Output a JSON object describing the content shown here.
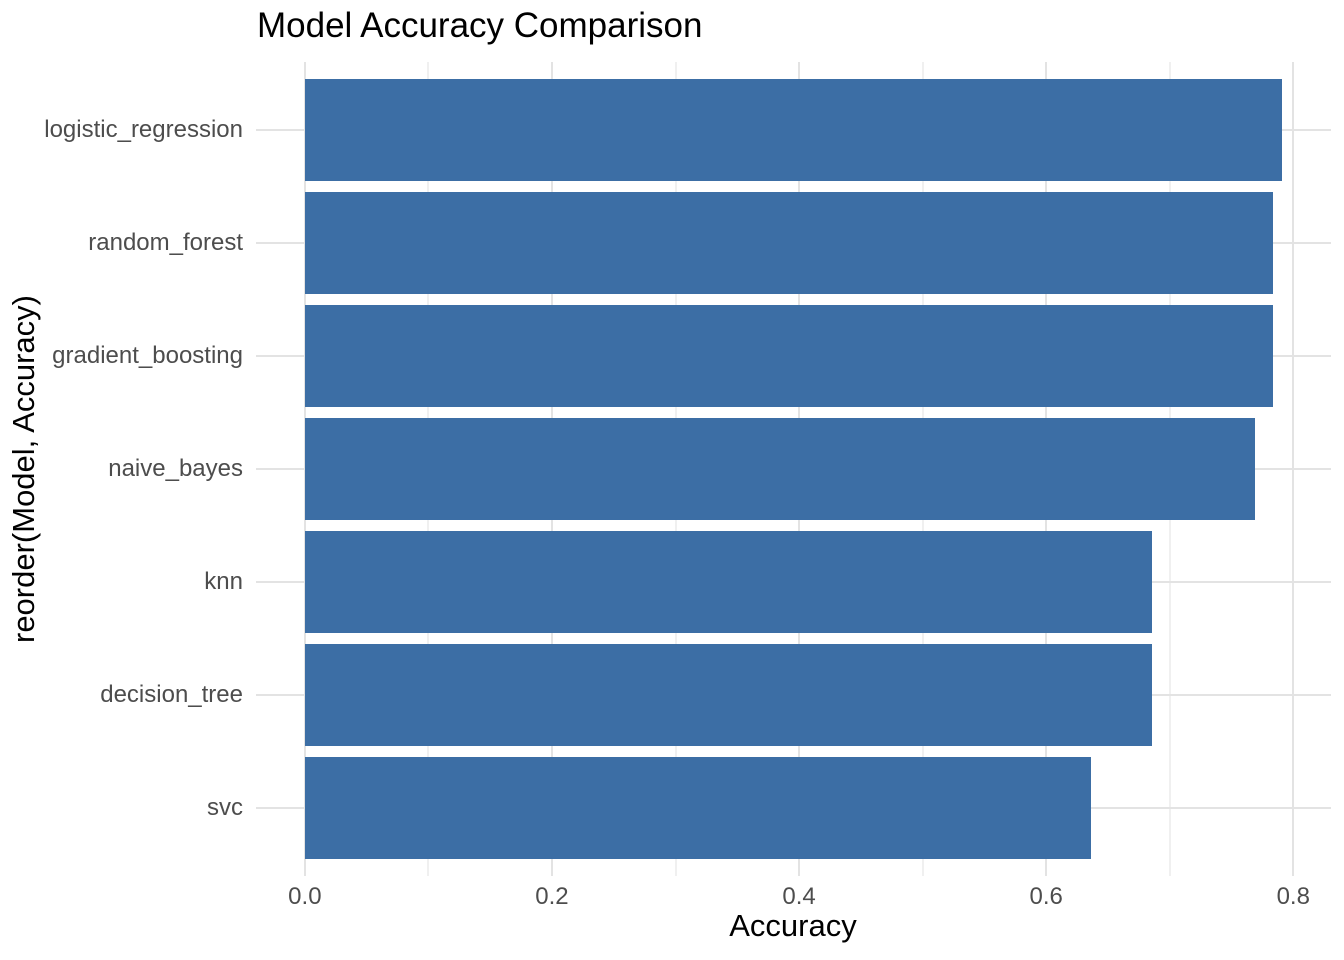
{
  "figure": {
    "title": "Model Accuracy Comparison",
    "x_axis_title": "Accuracy",
    "y_axis_title": "reorder(Model, Accuracy)"
  },
  "chart_data": {
    "type": "bar",
    "orientation": "horizontal",
    "title": "Model Accuracy Comparison",
    "xlabel": "Accuracy",
    "ylabel": "reorder(Model, Accuracy)",
    "categories": [
      "logistic_regression",
      "random_forest",
      "gradient_boosting",
      "naive_bayes",
      "knn",
      "decision_tree",
      "svc"
    ],
    "values": [
      0.791,
      0.784,
      0.784,
      0.769,
      0.686,
      0.686,
      0.636
    ],
    "xlim": [
      0,
      0.8
    ],
    "x_ticks": [
      0,
      0.2,
      0.4,
      0.6,
      0.8
    ],
    "x_tick_labels": [
      "0.0",
      "0.2",
      "0.4",
      "0.6",
      "0.8"
    ],
    "x_minor_ticks": [
      0.1,
      0.3,
      0.5,
      0.7
    ],
    "bar_rel_width": 0.9,
    "grid": "major+minor",
    "legend": "none",
    "colors": {
      "bar": "#3C6EA5",
      "grid_major": "#E3E3E3",
      "grid_minor": "#F0F0F0",
      "axis_text": "#4D4D4D",
      "title_text": "#000000",
      "background": "#FFFFFF"
    }
  }
}
